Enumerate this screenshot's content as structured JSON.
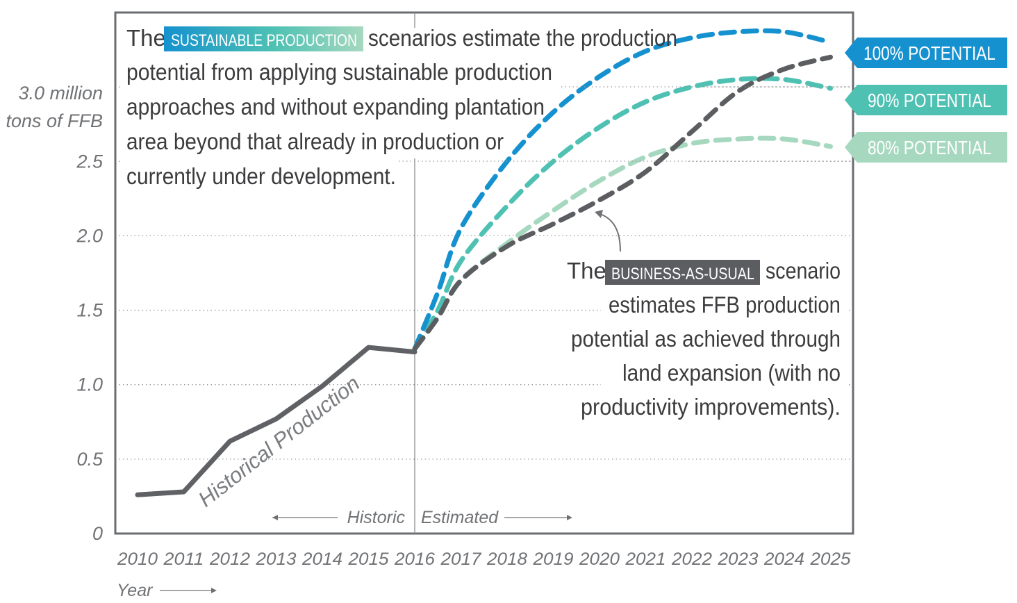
{
  "colors": {
    "p100": "#1591cf",
    "p90": "#4ec1b3",
    "p80": "#a6d8bf",
    "bau": "#5b5d61",
    "historical": "#5f6164",
    "frame": "#6a6c6f",
    "grid": "#9a9c9e",
    "text": "#3c3c3e",
    "axis_text": "#707275"
  },
  "chart_data": {
    "type": "line",
    "xlabel": "Year",
    "ylabel": "3.0 million tons of FFB",
    "ylabel_lines": [
      "3.0 million",
      "tons of FFB"
    ],
    "x_ticks": [
      "2010",
      "2011",
      "2012",
      "2013",
      "2014",
      "2015",
      "2016",
      "2017",
      "2018",
      "2019",
      "2020",
      "2021",
      "2022",
      "2023",
      "2024",
      "2025"
    ],
    "y_ticks": [
      "0",
      "0.5",
      "1.0",
      "1.5",
      "2.0",
      "2.5"
    ],
    "xlim": [
      2009.5,
      2025.5
    ],
    "ylim": [
      0,
      3.5
    ],
    "grid": "horizontal-dotted",
    "divider_year": 2016,
    "period_labels": {
      "historic": "Historic",
      "estimated": "Estimated"
    },
    "series": [
      {
        "name": "Historical Production",
        "key": "historical",
        "style": "solid",
        "x": [
          2010,
          2011,
          2012,
          2013,
          2014,
          2015,
          2016
        ],
        "y": [
          0.26,
          0.28,
          0.62,
          0.77,
          0.99,
          1.25,
          1.22
        ]
      },
      {
        "name": "100% POTENTIAL",
        "key": "p100",
        "style": "dashed",
        "x": [
          2016,
          2016.5,
          2017,
          2018,
          2019,
          2020,
          2021,
          2022,
          2023,
          2024,
          2025
        ],
        "y": [
          1.24,
          1.62,
          2.05,
          2.5,
          2.83,
          3.07,
          3.24,
          3.33,
          3.37,
          3.37,
          3.3
        ]
      },
      {
        "name": "90% POTENTIAL",
        "key": "p90",
        "style": "dashed",
        "x": [
          2016,
          2016.5,
          2017,
          2018,
          2019,
          2020,
          2021,
          2022,
          2023,
          2024,
          2025
        ],
        "y": [
          1.24,
          1.5,
          1.83,
          2.2,
          2.5,
          2.73,
          2.9,
          3.0,
          3.05,
          3.05,
          2.99
        ]
      },
      {
        "name": "80% POTENTIAL",
        "key": "p80",
        "style": "dashed",
        "x": [
          2016,
          2016.5,
          2017,
          2018,
          2019,
          2020,
          2021,
          2022,
          2023,
          2024,
          2025
        ],
        "y": [
          1.24,
          1.45,
          1.7,
          1.95,
          2.17,
          2.37,
          2.53,
          2.62,
          2.65,
          2.65,
          2.6
        ]
      },
      {
        "name": "BUSINESS-AS-USUAL",
        "key": "bau",
        "style": "dashed",
        "x": [
          2016,
          2016.5,
          2017,
          2018,
          2019,
          2020,
          2021,
          2022,
          2023,
          2024,
          2025
        ],
        "y": [
          1.24,
          1.45,
          1.7,
          1.93,
          2.08,
          2.24,
          2.43,
          2.7,
          2.97,
          3.12,
          3.2
        ]
      }
    ],
    "annotations": {
      "sustainable": {
        "prefix": "The",
        "highlight": "SUSTAINABLE PRODUCTION",
        "suffix": "scenarios estimate the production",
        "lines": [
          "potential from applying sustainable production",
          "approaches and without expanding plantation",
          "area beyond that already in production or",
          "currently under development."
        ]
      },
      "bau": {
        "prefix": "The",
        "highlight": "BUSINESS-AS-USUAL",
        "suffix": "scenario",
        "lines": [
          "estimates FFB production",
          "potential as achieved through",
          "land expansion (with no",
          "productivity improvements)."
        ]
      },
      "historical_label": "Historical Production"
    },
    "legend_tags": {
      "p100": "100% POTENTIAL",
      "p90": "90% POTENTIAL",
      "p80": "80% POTENTIAL"
    }
  }
}
